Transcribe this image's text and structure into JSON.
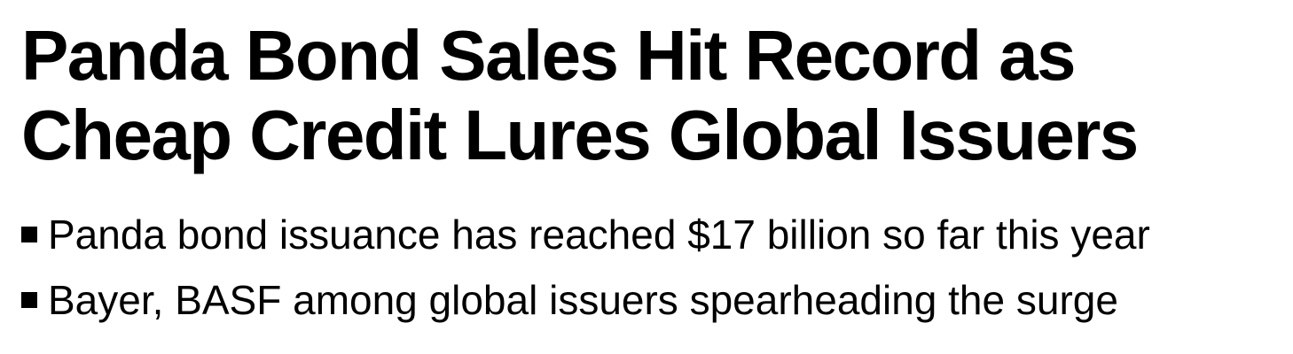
{
  "article": {
    "headline": {
      "line1": "Panda Bond Sales Hit Record as",
      "line2": "Cheap Credit Lures Global Issuers"
    },
    "bullets": [
      "Panda bond issuance has reached $17 billion so far this year",
      "Bayer, BASF among global issuers spearheading the surge"
    ]
  },
  "colors": {
    "text": "#000000",
    "background": "#ffffff",
    "bullet_marker": "#000000"
  },
  "icons": {
    "bullet_marker": "square-bullet-icon"
  }
}
